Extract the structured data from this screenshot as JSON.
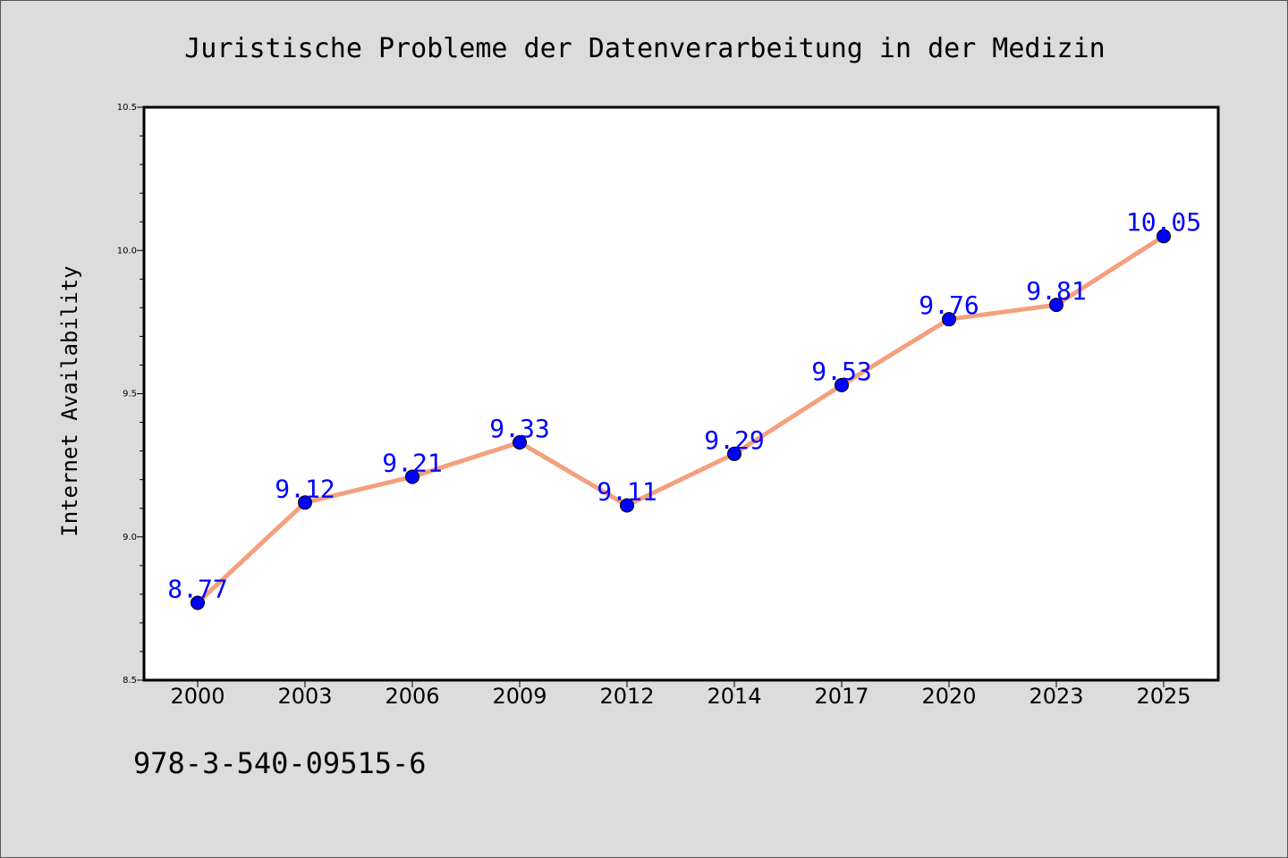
{
  "chart_data": {
    "type": "line",
    "title": "Juristische Probleme der Datenverarbeitung in der Medizin",
    "xlabel": "",
    "ylabel": "Internet Availability",
    "categories": [
      "2000",
      "2003",
      "2006",
      "2009",
      "2012",
      "2014",
      "2017",
      "2020",
      "2023",
      "2025"
    ],
    "series": [
      {
        "values": [
          8.77,
          9.12,
          9.21,
          9.33,
          9.11,
          9.29,
          9.53,
          9.76,
          9.81,
          10.05
        ],
        "data_labels": [
          "8.77",
          "9.12",
          "9.21",
          "9.33",
          "9.11",
          "9.29",
          "9.53",
          "9.76",
          "9.81",
          "10.05"
        ]
      }
    ],
    "ylim": [
      8.5,
      10.5
    ],
    "y_ticks": [
      "8.5",
      "9.0",
      "9.5",
      "10.0",
      "10.5"
    ],
    "grid": false,
    "colors": {
      "line": "#f4a07f",
      "marker": "#0000ff",
      "data_label": "#0000ff",
      "background": "#dcdcdc",
      "plot_area": "#ffffff"
    }
  },
  "footer": {
    "isbn": "978-3-540-09515-6"
  }
}
